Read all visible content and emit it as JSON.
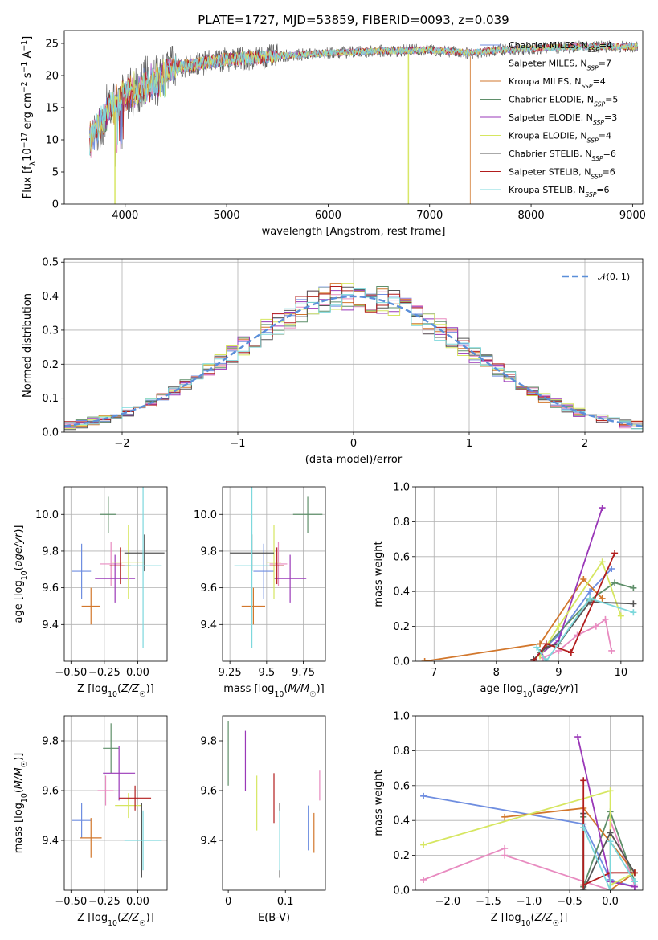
{
  "colors": {
    "Chabrier MILES": "#6f8ee0",
    "Salpeter MILES": "#e88bc0",
    "Kroupa MILES": "#d2772c",
    "Chabrier ELODIE": "#5f8f6a",
    "Salpeter ELODIE": "#9a38b8",
    "Kroupa ELODIE": "#d6e660",
    "Chabrier STELIB": "#555555",
    "Salpeter STELIB": "#b21d1d",
    "Kroupa STELIB": "#7dd8dc"
  },
  "chart_data": [
    {
      "id": "spectrum",
      "type": "line",
      "title": "PLATE=1727, MJD=53859, FIBERID=0093, z=0.039",
      "xlabel": "wavelength [Angstrom, rest frame]",
      "ylabel": "Flux [f_λ10^-17 erg cm^-2 s^-1 A^-1]",
      "xlim": [
        3400,
        9100
      ],
      "ylim": [
        0,
        27
      ],
      "xticks": [
        4000,
        5000,
        6000,
        7000,
        8000,
        9000
      ],
      "yticks": [
        0,
        5,
        10,
        15,
        20,
        25
      ],
      "legend_position": "top-right",
      "series": [
        {
          "name": "Chabrier MILES",
          "nssp": "4"
        },
        {
          "name": "Salpeter MILES",
          "nssp": "7"
        },
        {
          "name": "Kroupa MILES",
          "nssp": "4"
        },
        {
          "name": "Chabrier ELODIE",
          "nssp": "5"
        },
        {
          "name": "Salpeter ELODIE",
          "nssp": "3"
        },
        {
          "name": "Kroupa ELODIE",
          "nssp": "4"
        },
        {
          "name": "Chabrier STELIB",
          "nssp": "6"
        },
        {
          "name": "Salpeter STELIB",
          "nssp": "6"
        },
        {
          "name": "Kroupa STELIB",
          "nssp": "6"
        }
      ],
      "continuum": {
        "x": [
          3650,
          3800,
          4000,
          4300,
          4600,
          5000,
          5500,
          6000,
          6500,
          7000,
          7400,
          7700,
          8000,
          8500,
          9000
        ],
        "y": [
          11,
          15,
          18.5,
          20.5,
          21.5,
          22.5,
          23,
          23.5,
          23.8,
          24,
          23.5,
          24,
          24.2,
          24.5,
          24.5
        ]
      },
      "drops": [
        {
          "series": "Kroupa ELODIE",
          "x": 3900
        },
        {
          "series": "Kroupa ELODIE",
          "x": 6790
        },
        {
          "series": "Kroupa MILES",
          "x": 7400
        }
      ]
    },
    {
      "id": "residuals",
      "type": "histogram",
      "xlabel": "(data-model)/error",
      "ylabel": "Normed distribution",
      "xlim": [
        -2.5,
        2.5
      ],
      "ylim": [
        0,
        0.51
      ],
      "xticks": [
        -2,
        -1,
        0,
        1,
        2
      ],
      "yticks": [
        0.0,
        0.1,
        0.2,
        0.3,
        0.4,
        0.5
      ],
      "grid": true,
      "legend_position": "top-right",
      "reference_curve": {
        "name": "𝒩(0, 1)",
        "mean": 0,
        "sigma": 1
      },
      "bin_width": 0.1
    },
    {
      "id": "age-vs-Z",
      "type": "errorbar",
      "xlabel": "Z [log10(Z/Z☉)]",
      "ylabel": "age  [log10(age/yr)]",
      "xlim": [
        -0.55,
        0.22
      ],
      "ylim": [
        9.2,
        10.15
      ],
      "xticks": [
        -0.5,
        -0.25,
        0.0
      ],
      "xticklabels": [
        "−0.50",
        "−0.25",
        "0.00"
      ],
      "yticks": [
        9.4,
        9.6,
        9.8,
        10.0
      ],
      "grid": true,
      "points": [
        {
          "series": "Chabrier MILES",
          "x": -0.42,
          "xerr": 0.07,
          "y": 9.69,
          "yerr": 0.15
        },
        {
          "series": "Salpeter MILES",
          "x": -0.2,
          "xerr": 0.08,
          "y": 9.73,
          "yerr": 0.12
        },
        {
          "series": "Kroupa MILES",
          "x": -0.35,
          "xerr": 0.07,
          "y": 9.5,
          "yerr": 0.1
        },
        {
          "series": "Chabrier ELODIE",
          "x": -0.22,
          "xerr": 0.06,
          "y": 10.0,
          "yerr": 0.1
        },
        {
          "series": "Salpeter ELODIE",
          "x": -0.17,
          "xerr": 0.15,
          "y": 9.65,
          "yerr": 0.13
        },
        {
          "series": "Kroupa ELODIE",
          "x": -0.07,
          "xerr": 0.12,
          "y": 9.74,
          "yerr": 0.2
        },
        {
          "series": "Chabrier STELIB",
          "x": 0.05,
          "xerr": 0.15,
          "y": 9.79,
          "yerr": 0.1
        },
        {
          "series": "Salpeter STELIB",
          "x": -0.13,
          "xerr": 0.08,
          "y": 9.72,
          "yerr": 0.1
        },
        {
          "series": "Kroupa STELIB",
          "x": 0.04,
          "xerr": 0.14,
          "y": 9.72,
          "yerr": 0.45
        }
      ]
    },
    {
      "id": "age-vs-mass",
      "type": "errorbar",
      "xlabel": "mass [log10(M/M☉)]",
      "ylabel": "",
      "xlim": [
        9.2,
        9.9
      ],
      "ylim": [
        9.2,
        10.15
      ],
      "xticks": [
        9.25,
        9.5,
        9.75
      ],
      "yticks": [
        9.4,
        9.6,
        9.8,
        10.0
      ],
      "grid": true,
      "points": [
        {
          "series": "Chabrier MILES",
          "x": 9.48,
          "xerr": 0.07,
          "y": 9.69,
          "yerr": 0.15
        },
        {
          "series": "Salpeter MILES",
          "x": 9.58,
          "xerr": 0.06,
          "y": 9.73,
          "yerr": 0.12
        },
        {
          "series": "Kroupa MILES",
          "x": 9.41,
          "xerr": 0.08,
          "y": 9.5,
          "yerr": 0.1
        },
        {
          "series": "Chabrier ELODIE",
          "x": 9.78,
          "xerr": 0.1,
          "y": 10.0,
          "yerr": 0.1
        },
        {
          "series": "Salpeter ELODIE",
          "x": 9.66,
          "xerr": 0.11,
          "y": 9.65,
          "yerr": 0.13
        },
        {
          "series": "Kroupa ELODIE",
          "x": 9.55,
          "xerr": 0.05,
          "y": 9.74,
          "yerr": 0.2
        },
        {
          "series": "Chabrier STELIB",
          "x": 9.4,
          "xerr": 0.15,
          "y": 9.79,
          "yerr": 0.1
        },
        {
          "series": "Salpeter STELIB",
          "x": 9.57,
          "xerr": 0.05,
          "y": 9.72,
          "yerr": 0.1
        },
        {
          "series": "Kroupa STELIB",
          "x": 9.4,
          "xerr": 0.12,
          "y": 9.72,
          "yerr": 0.45
        }
      ]
    },
    {
      "id": "weight-vs-age",
      "type": "line",
      "xlabel": "age  [log10(age/yr)]",
      "ylabel": "mass weight",
      "xlim": [
        6.7,
        10.35
      ],
      "ylim": [
        0,
        1.0
      ],
      "xticks": [
        7,
        8,
        9,
        10
      ],
      "yticks": [
        0.0,
        0.2,
        0.4,
        0.6,
        0.8,
        1.0
      ],
      "grid": true,
      "series": [
        {
          "name": "Chabrier MILES",
          "x": [
            8.7,
            9.0,
            9.5,
            9.85
          ],
          "y": [
            0.05,
            0.15,
            0.4,
            0.53
          ]
        },
        {
          "name": "Salpeter MILES",
          "x": [
            8.75,
            9.0,
            9.3,
            9.6,
            9.75,
            9.85
          ],
          "y": [
            0.02,
            0.06,
            0.15,
            0.2,
            0.24,
            0.06
          ]
        },
        {
          "name": "Kroupa MILES",
          "x": [
            6.85,
            8.7,
            9.4,
            9.7
          ],
          "y": [
            0.0,
            0.1,
            0.47,
            0.36
          ]
        },
        {
          "name": "Chabrier ELODIE",
          "x": [
            8.7,
            9.5,
            9.9,
            10.2
          ],
          "y": [
            0.05,
            0.35,
            0.45,
            0.42
          ]
        },
        {
          "name": "Salpeter ELODIE",
          "x": [
            8.7,
            9.0,
            9.7
          ],
          "y": [
            0.04,
            0.12,
            0.88
          ]
        },
        {
          "name": "Kroupa ELODIE",
          "x": [
            8.7,
            9.0,
            9.7,
            10.0
          ],
          "y": [
            0.03,
            0.2,
            0.57,
            0.26
          ]
        },
        {
          "name": "Chabrier STELIB",
          "x": [
            8.6,
            8.8,
            9.0,
            9.5,
            10.2
          ],
          "y": [
            0.01,
            0.08,
            0.1,
            0.34,
            0.33
          ]
        },
        {
          "name": "Salpeter STELIB",
          "x": [
            8.6,
            8.8,
            9.2,
            9.9
          ],
          "y": [
            0.0,
            0.1,
            0.05,
            0.62
          ]
        },
        {
          "name": "Kroupa STELIB",
          "x": [
            8.65,
            8.8,
            9.5,
            10.2
          ],
          "y": [
            0.08,
            0.0,
            0.36,
            0.28
          ]
        }
      ]
    },
    {
      "id": "mass-vs-Z",
      "type": "errorbar",
      "xlabel": "Z [log10(Z/Z☉)]",
      "ylabel": "mass [log10(M/M☉)]",
      "xlim": [
        -0.55,
        0.22
      ],
      "ylim": [
        9.2,
        9.9
      ],
      "xticks": [
        -0.5,
        -0.25,
        0.0
      ],
      "xticklabels": [
        "−0.50",
        "−0.25",
        "0.00"
      ],
      "yticks": [
        9.4,
        9.6,
        9.8
      ],
      "grid": true,
      "points": [
        {
          "series": "Chabrier MILES",
          "x": -0.42,
          "xerr": 0.07,
          "y": 9.48,
          "yerr": 0.07
        },
        {
          "series": "Salpeter MILES",
          "x": -0.24,
          "xerr": 0.06,
          "y": 9.6,
          "yerr": 0.06
        },
        {
          "series": "Kroupa MILES",
          "x": -0.35,
          "xerr": 0.08,
          "y": 9.41,
          "yerr": 0.08
        },
        {
          "series": "Chabrier ELODIE",
          "x": -0.2,
          "xerr": 0.06,
          "y": 9.77,
          "yerr": 0.1
        },
        {
          "series": "Salpeter ELODIE",
          "x": -0.14,
          "xerr": 0.12,
          "y": 9.67,
          "yerr": 0.11
        },
        {
          "series": "Kroupa ELODIE",
          "x": -0.07,
          "xerr": 0.1,
          "y": 9.54,
          "yerr": 0.05
        },
        {
          "series": "Chabrier STELIB",
          "x": 0.03,
          "xerr": 0.0,
          "y": 9.4,
          "yerr": 0.15
        },
        {
          "series": "Salpeter STELIB",
          "x": -0.02,
          "xerr": 0.12,
          "y": 9.57,
          "yerr": 0.05
        },
        {
          "series": "Kroupa STELIB",
          "x": 0.04,
          "xerr": 0.14,
          "y": 9.4,
          "yerr": 0.12
        }
      ]
    },
    {
      "id": "mass-vs-EBV",
      "type": "errorbar",
      "xlabel": "E(B-V)",
      "ylabel": "",
      "xlim": [
        -0.01,
        0.17
      ],
      "ylim": [
        9.2,
        9.9
      ],
      "xticks": [
        0.0,
        0.1
      ],
      "yticks": [
        9.4,
        9.6,
        9.8
      ],
      "grid": false,
      "points": [
        {
          "series": "Chabrier MILES",
          "x": 0.14,
          "xerr": 0.0,
          "y": 9.45,
          "yerr": 0.09
        },
        {
          "series": "Salpeter MILES",
          "x": 0.16,
          "xerr": 0.0,
          "y": 9.62,
          "yerr": 0.06
        },
        {
          "series": "Kroupa MILES",
          "x": 0.15,
          "xerr": 0.0,
          "y": 9.43,
          "yerr": 0.08
        },
        {
          "series": "Chabrier ELODIE",
          "x": 0.0,
          "xerr": 0.0,
          "y": 9.75,
          "yerr": 0.13
        },
        {
          "series": "Salpeter ELODIE",
          "x": 0.03,
          "xerr": 0.0,
          "y": 9.72,
          "yerr": 0.12
        },
        {
          "series": "Kroupa ELODIE",
          "x": 0.05,
          "xerr": 0.0,
          "y": 9.55,
          "yerr": 0.11
        },
        {
          "series": "Chabrier STELIB",
          "x": 0.09,
          "xerr": 0.0,
          "y": 9.4,
          "yerr": 0.15
        },
        {
          "series": "Salpeter STELIB",
          "x": 0.08,
          "xerr": 0.0,
          "y": 9.57,
          "yerr": 0.1
        },
        {
          "series": "Kroupa STELIB",
          "x": 0.09,
          "xerr": 0.0,
          "y": 9.4,
          "yerr": 0.12
        }
      ]
    },
    {
      "id": "weight-vs-Z",
      "type": "line",
      "xlabel": "Z [log10(Z/Z☉)]",
      "ylabel": "mass weight",
      "xlim": [
        -2.4,
        0.4
      ],
      "ylim": [
        0,
        1.0
      ],
      "xticks": [
        -2.0,
        -1.5,
        -1.0,
        -0.5,
        0.0
      ],
      "xticklabels": [
        "−2.0",
        "−1.5",
        "−1.0",
        "−0.5",
        "0.0"
      ],
      "yticks": [
        0.0,
        0.2,
        0.4,
        0.6,
        0.8,
        1.0
      ],
      "grid": true,
      "series": [
        {
          "name": "Chabrier MILES",
          "x": [
            -2.3,
            -0.33,
            0.0,
            0.3
          ],
          "y": [
            0.54,
            0.38,
            0.06,
            0.02
          ]
        },
        {
          "name": "Salpeter MILES",
          "x": [
            -2.3,
            -1.3,
            -1.3,
            0.0,
            0.0,
            0.3
          ],
          "y": [
            0.06,
            0.24,
            0.2,
            0.0,
            0.4,
            0.03
          ]
        },
        {
          "name": "Kroupa MILES",
          "x": [
            -1.3,
            -0.33,
            0.3,
            0.0
          ],
          "y": [
            0.42,
            0.47,
            0.1,
            0.0
          ]
        },
        {
          "name": "Chabrier ELODIE",
          "x": [
            -0.33,
            -0.33,
            0.0,
            0.3
          ],
          "y": [
            0.42,
            0.02,
            0.45,
            0.05
          ]
        },
        {
          "name": "Salpeter ELODIE",
          "x": [
            -0.4,
            0.0,
            0.3
          ],
          "y": [
            0.88,
            0.05,
            0.02
          ]
        },
        {
          "name": "Kroupa ELODIE",
          "x": [
            -2.3,
            0.0,
            0.0,
            0.3
          ],
          "y": [
            0.26,
            0.57,
            0.03,
            0.1
          ]
        },
        {
          "name": "Chabrier STELIB",
          "x": [
            -0.33,
            -0.33,
            0.0,
            0.3
          ],
          "y": [
            0.44,
            0.0,
            0.33,
            0.1
          ]
        },
        {
          "name": "Salpeter STELIB",
          "x": [
            -0.33,
            -0.33,
            0.0,
            0.3
          ],
          "y": [
            0.63,
            0.03,
            0.1,
            0.1
          ]
        },
        {
          "name": "Kroupa STELIB",
          "x": [
            -0.33,
            0.0,
            0.0,
            0.3
          ],
          "y": [
            0.36,
            0.0,
            0.28,
            0.05
          ]
        }
      ]
    }
  ]
}
